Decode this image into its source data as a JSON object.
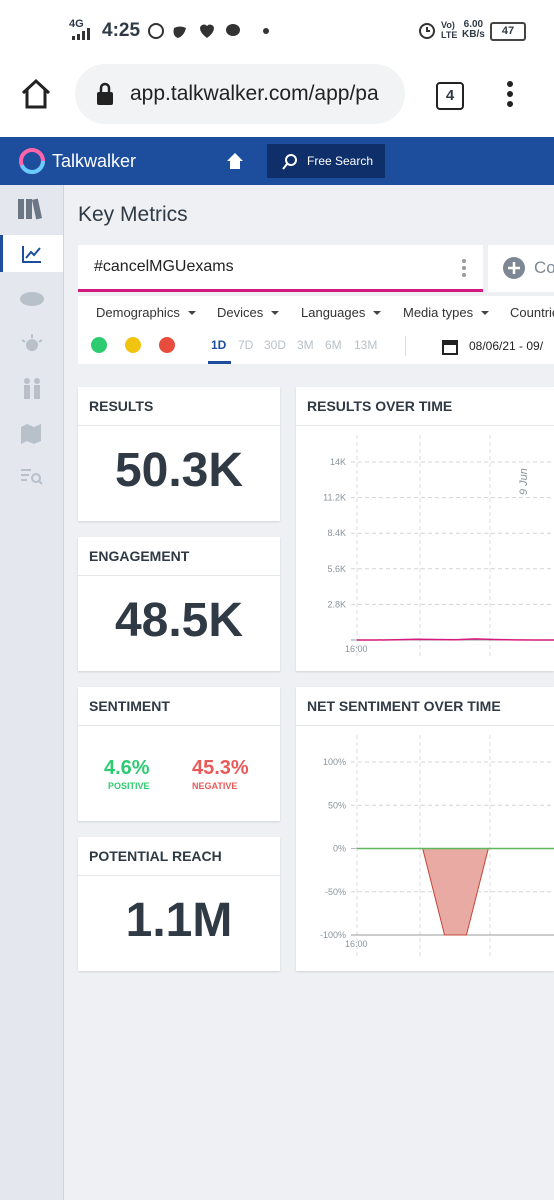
{
  "status_bar": {
    "network": "4G",
    "time": "4:25",
    "volte": "Vo) LTE",
    "speed": "6.00",
    "speed_unit": "KB/s",
    "battery": "47"
  },
  "browser": {
    "url": "app.talkwalker.com/app/pa",
    "tab_count": "4"
  },
  "header": {
    "brand": "Talkwalker",
    "free_search": "Free Search"
  },
  "page": {
    "title": "Key Metrics",
    "search_query": "#cancelMGUexams",
    "add_query": "Co",
    "filters": [
      "Demographics",
      "Devices",
      "Languages",
      "Media types",
      "Countrie"
    ],
    "ranges": [
      "1D",
      "7D",
      "30D",
      "3M",
      "6M",
      "13M"
    ],
    "date_range": "08/06/21 - 09/"
  },
  "metrics": [
    {
      "title": "RESULTS",
      "value": "50.3K"
    },
    {
      "title": "ENGAGEMENT",
      "value": "48.5K"
    },
    {
      "title": "POTENTIAL REACH",
      "value": "1.1M"
    }
  ],
  "sentiment": {
    "title": "SENTIMENT",
    "positive": {
      "value": "4.6%",
      "label": "POSITIVE"
    },
    "negative": {
      "value": "45.3%",
      "label": "NEGATIVE"
    }
  },
  "charts": [
    {
      "type": "line",
      "title": "RESULTS OVER TIME",
      "ylim": [
        0,
        14000
      ],
      "yticks": [
        {
          "value": 2800,
          "label": "2.8K"
        },
        {
          "value": 5600,
          "label": "5.6K"
        },
        {
          "value": 8400,
          "label": "8.4K"
        },
        {
          "value": 11200,
          "label": "11.2K"
        },
        {
          "value": 14000,
          "label": "14K"
        }
      ],
      "x_label": "16:00",
      "annotation": "9 Jun",
      "grid": true,
      "series": [
        {
          "color": "#d6197e",
          "values": [
            0,
            0,
            20,
            60,
            40,
            20,
            90,
            40,
            10,
            0,
            0
          ]
        }
      ]
    },
    {
      "type": "area",
      "title": "NET SENTIMENT OVER TIME",
      "ylim": [
        -100,
        100
      ],
      "yticks": [
        {
          "value": -100,
          "label": "-100%"
        },
        {
          "value": -50,
          "label": "-50%"
        },
        {
          "value": 0,
          "label": "0%"
        },
        {
          "value": 50,
          "label": "50%"
        },
        {
          "value": 100,
          "label": "100%"
        }
      ],
      "x_label": "16:00",
      "grid": true,
      "series": [
        {
          "color": "#5cb85c",
          "fill": "#e8aaa2",
          "edge": "#c0483c",
          "values": [
            0,
            0,
            0,
            0,
            -100,
            -100,
            0,
            0,
            0,
            0
          ]
        }
      ]
    }
  ]
}
